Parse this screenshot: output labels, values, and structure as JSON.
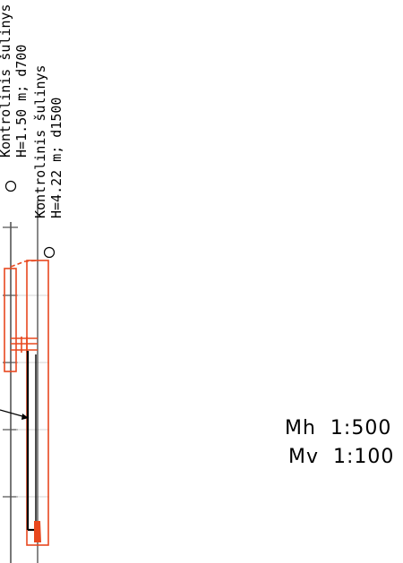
{
  "annotations": {
    "well_1": {
      "name": "Kontrolinis šulinys",
      "spec": "H=1.50 m; d700"
    },
    "well_2": {
      "name": "Kontrolinis šulinys",
      "spec": "H=4.22 m; d1500"
    }
  },
  "scale": {
    "horizontal": "Mh  1:500",
    "vertical": "Mv  1:100"
  },
  "colors": {
    "structure": "#e8481f",
    "line": "#000000",
    "grid": "#c8c8c8"
  }
}
